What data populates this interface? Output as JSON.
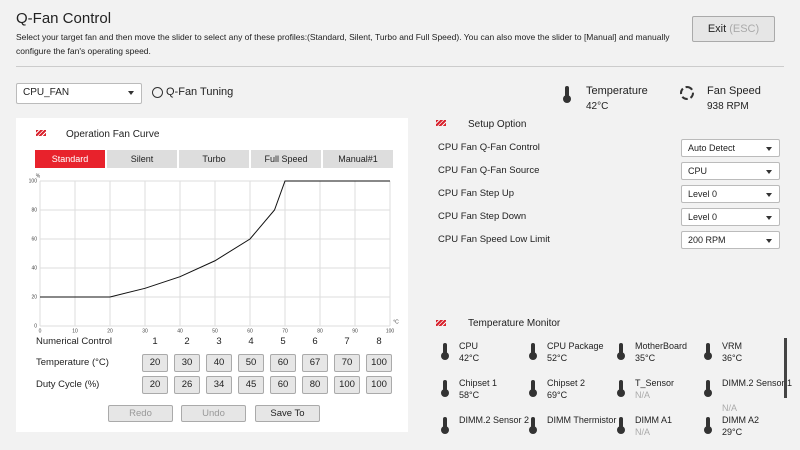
{
  "header": {
    "title": "Q-Fan Control",
    "description": "Select your target fan and then move the slider to select any of these profiles:(Standard, Silent, Turbo and Full Speed). You can also move the slider to [Manual] and manually configure the fan's operating speed.",
    "exit": "Exit",
    "exit_hint": "(ESC)"
  },
  "fan_selector": {
    "value": "CPU_FAN",
    "tuning": "Q-Fan Tuning"
  },
  "status": [
    {
      "label": "Temperature",
      "value": "42°C"
    },
    {
      "label": "Fan Speed",
      "value": "938 RPM"
    }
  ],
  "fan_curve": {
    "title": "Operation Fan Curve",
    "profiles": [
      "Standard",
      "Silent",
      "Turbo",
      "Full Speed",
      "Manual#1"
    ],
    "active_profile": 0
  },
  "chart_data": {
    "type": "line",
    "x_label": "°C",
    "y_label": "%",
    "x": [
      20,
      30,
      40,
      50,
      60,
      67,
      70,
      100
    ],
    "series": [
      {
        "values": [
          20,
          26,
          34,
          45,
          60,
          80,
          100,
          100
        ],
        "color": "#111111"
      }
    ],
    "xlim": [
      0,
      100
    ],
    "ylim": [
      0,
      100
    ],
    "xticks": [
      0,
      10,
      20,
      30,
      40,
      50,
      60,
      70,
      80,
      90,
      100
    ],
    "yticks": [
      0,
      20,
      40,
      60,
      80,
      100
    ],
    "grid": true
  },
  "numerical_control": {
    "label": "Numerical Control",
    "columns": [
      1,
      2,
      3,
      4,
      5,
      6,
      7,
      8
    ],
    "rows": [
      {
        "label": "Temperature (°C)"
      },
      {
        "label": "Duty Cycle (%)"
      }
    ]
  },
  "actions": [
    "Redo",
    "Undo",
    "Save To"
  ],
  "setup": {
    "title": "Setup Option",
    "rows": [
      {
        "label": "CPU Fan Q-Fan Control",
        "value": "Auto Detect"
      },
      {
        "label": "CPU Fan Q-Fan Source",
        "value": "CPU"
      },
      {
        "label": "CPU Fan Step Up",
        "value": "Level 0"
      },
      {
        "label": "CPU Fan Step Down",
        "value": "Level 0"
      },
      {
        "label": "CPU Fan Speed Low Limit",
        "value": "200 RPM"
      }
    ]
  },
  "monitor": {
    "title": "Temperature Monitor",
    "sensors": [
      {
        "name": "CPU",
        "value": "42°C"
      },
      {
        "name": "CPU Package",
        "value": "52°C"
      },
      {
        "name": "MotherBoard",
        "value": "35°C"
      },
      {
        "name": "VRM",
        "value": "36°C"
      },
      {
        "name": "Chipset 1",
        "value": "58°C"
      },
      {
        "name": "Chipset 2",
        "value": "69°C"
      },
      {
        "name": "T_Sensor",
        "value": "N/A"
      },
      {
        "name": "DIMM.2 Sensor 1",
        "value": "N/A"
      },
      {
        "name": "DIMM.2 Sensor 2"
      },
      {
        "name": "DIMM Thermistor"
      },
      {
        "name": "DIMM A1",
        "value": "N/A"
      },
      {
        "name": "DIMM A2",
        "value": "29°C"
      }
    ]
  }
}
